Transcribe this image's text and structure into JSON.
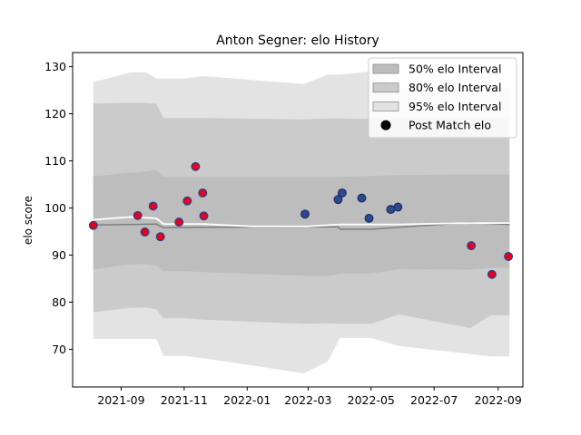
{
  "chart_data": {
    "type": "line",
    "title": "Anton Segner: elo History",
    "xlabel": "",
    "ylabel": "elo score",
    "xlim": [
      "2021-07-16",
      "2022-09-25"
    ],
    "ylim": [
      62,
      133
    ],
    "x_ticks": [
      "2021-09",
      "2021-11",
      "2022-01",
      "2022-03",
      "2022-05",
      "2022-07",
      "2022-09"
    ],
    "y_ticks": [
      70,
      80,
      90,
      100,
      110,
      120,
      130
    ],
    "legend_position": "top-right",
    "legend": [
      {
        "label": "50% elo Interval",
        "color": "#a9a9a9"
      },
      {
        "label": "80% elo Interval",
        "color": "#c2c2c2"
      },
      {
        "label": "95% elo Interval",
        "color": "#e0e0e0"
      },
      {
        "label": "Post Match elo",
        "color": "#000000"
      }
    ],
    "band_dates": [
      "2021-08-05",
      "2021-09-10",
      "2021-09-25",
      "2021-10-05",
      "2021-10-12",
      "2021-11-01",
      "2021-11-20",
      "2022-02-25",
      "2022-03-20",
      "2022-04-01",
      "2022-05-01",
      "2022-05-28",
      "2022-08-05",
      "2022-08-25",
      "2022-09-12"
    ],
    "intervals": [
      {
        "name": "95% elo Interval",
        "color": "#e3e3e3",
        "upper": [
          126.7,
          128.8,
          128.8,
          127.5,
          127.5,
          127.5,
          128.0,
          126.3,
          128.3,
          128.3,
          129.0,
          125.5,
          125.5,
          125.5,
          125.5
        ],
        "lower": [
          72.2,
          72.2,
          72.2,
          72.2,
          68.6,
          68.6,
          68.1,
          64.9,
          67.4,
          72.4,
          72.4,
          70.7,
          69.0,
          68.5,
          68.5
        ]
      },
      {
        "name": "80% elo Interval",
        "color": "#cbcbcb",
        "upper": [
          122.2,
          122.3,
          122.3,
          122.1,
          119.1,
          119.1,
          119.1,
          118.8,
          119.0,
          119.0,
          118.9,
          118.9,
          118.9,
          118.9,
          118.9
        ],
        "lower": [
          77.9,
          78.8,
          78.9,
          78.5,
          76.6,
          76.6,
          76.3,
          75.4,
          75.5,
          75.4,
          75.4,
          77.4,
          74.5,
          77.2,
          77.2
        ]
      },
      {
        "name": "50% elo Interval",
        "color": "#bdbdbd",
        "upper": [
          106.7,
          107.5,
          107.8,
          108.1,
          106.6,
          106.6,
          106.6,
          106.6,
          106.6,
          106.6,
          106.8,
          107.0,
          107.1,
          107.1,
          107.1
        ],
        "lower": [
          87.0,
          88.0,
          88.1,
          87.8,
          86.6,
          86.6,
          86.4,
          85.6,
          85.5,
          86.1,
          86.1,
          87.0,
          86.9,
          87.3,
          87.3
        ]
      }
    ],
    "mean_line": {
      "dates": [
        "2021-08-05",
        "2021-09-10",
        "2021-10-05",
        "2021-10-12",
        "2021-11-20",
        "2022-03-30",
        "2022-04-01",
        "2022-05-01",
        "2022-06-10",
        "2022-08-05",
        "2022-09-12"
      ],
      "values": [
        96.4,
        96.5,
        96.6,
        95.8,
        95.9,
        96.0,
        95.5,
        95.5,
        96.1,
        96.9,
        96.5
      ]
    },
    "median_line": {
      "dates": [
        "2021-08-05",
        "2021-09-10",
        "2021-10-05",
        "2021-10-12",
        "2021-11-20",
        "2022-01-05",
        "2022-03-01",
        "2022-04-01",
        "2022-05-28",
        "2022-08-05",
        "2022-09-12"
      ],
      "values": [
        97.5,
        98.1,
        97.8,
        96.6,
        96.6,
        96.1,
        96.1,
        96.5,
        96.5,
        96.8,
        96.8
      ]
    },
    "points": [
      {
        "date": "2021-08-05",
        "value": 96.3,
        "style": "red"
      },
      {
        "date": "2021-09-17",
        "value": 98.4,
        "style": "red"
      },
      {
        "date": "2021-09-24",
        "value": 94.9,
        "style": "red"
      },
      {
        "date": "2021-10-02",
        "value": 100.4,
        "style": "red"
      },
      {
        "date": "2021-10-09",
        "value": 93.9,
        "style": "red"
      },
      {
        "date": "2021-10-27",
        "value": 97.0,
        "style": "red"
      },
      {
        "date": "2021-11-04",
        "value": 101.5,
        "style": "red"
      },
      {
        "date": "2021-11-12",
        "value": 108.8,
        "style": "red"
      },
      {
        "date": "2021-11-19",
        "value": 103.2,
        "style": "red"
      },
      {
        "date": "2021-11-20",
        "value": 98.3,
        "style": "red"
      },
      {
        "date": "2022-02-26",
        "value": 98.7,
        "style": "blue"
      },
      {
        "date": "2022-03-30",
        "value": 101.8,
        "style": "blue"
      },
      {
        "date": "2022-04-03",
        "value": 103.2,
        "style": "blue"
      },
      {
        "date": "2022-04-22",
        "value": 102.1,
        "style": "blue"
      },
      {
        "date": "2022-04-29",
        "value": 97.8,
        "style": "blue"
      },
      {
        "date": "2022-05-20",
        "value": 99.7,
        "style": "blue"
      },
      {
        "date": "2022-05-27",
        "value": 100.2,
        "style": "blue"
      },
      {
        "date": "2022-08-06",
        "value": 92.0,
        "style": "red"
      },
      {
        "date": "2022-08-26",
        "value": 85.9,
        "style": "red"
      },
      {
        "date": "2022-09-11",
        "value": 89.7,
        "style": "red"
      }
    ],
    "point_colors": {
      "red": {
        "fill": "#e8001c",
        "stroke": "#2c3d8f"
      },
      "blue": {
        "fill": "#2e4a8f",
        "stroke": "#1d2d66"
      }
    },
    "grid": false
  }
}
